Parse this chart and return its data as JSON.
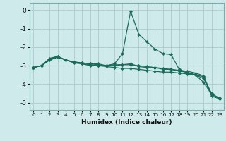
{
  "xlabel": "Humidex (Indice chaleur)",
  "bg_color": "#ceeaea",
  "grid_color": "#b0d0d0",
  "line_color": "#1a6b5a",
  "xlim": [
    -0.5,
    23.5
  ],
  "ylim": [
    -5.4,
    0.4
  ],
  "xticks": [
    0,
    1,
    2,
    3,
    4,
    5,
    6,
    7,
    8,
    9,
    10,
    11,
    12,
    13,
    14,
    15,
    16,
    17,
    18,
    19,
    20,
    21,
    22,
    23
  ],
  "yticks": [
    0,
    -1,
    -2,
    -3,
    -4,
    -5
  ],
  "line1_x": [
    0,
    1,
    2,
    3,
    4,
    5,
    6,
    7,
    8,
    9,
    10,
    11,
    12,
    13,
    14,
    15,
    16,
    17,
    18,
    19,
    20,
    21,
    22,
    23
  ],
  "line1_y": [
    -3.1,
    -3.0,
    -2.6,
    -2.5,
    -2.7,
    -2.8,
    -2.9,
    -3.0,
    -3.0,
    -3.0,
    -2.9,
    -2.35,
    -0.05,
    -1.3,
    -1.7,
    -2.1,
    -2.35,
    -2.4,
    -3.2,
    -3.4,
    -3.5,
    -3.9,
    -4.55,
    -4.75
  ],
  "line2_x": [
    0,
    1,
    2,
    3,
    4,
    5,
    6,
    7,
    8,
    9,
    10,
    11,
    12,
    13,
    14,
    15,
    16,
    17,
    18,
    19,
    20,
    21,
    22,
    23
  ],
  "line2_y": [
    -3.1,
    -3.0,
    -2.7,
    -2.55,
    -2.7,
    -2.85,
    -2.9,
    -2.95,
    -3.0,
    -3.05,
    -3.1,
    -3.15,
    -3.15,
    -3.2,
    -3.25,
    -3.3,
    -3.35,
    -3.35,
    -3.4,
    -3.45,
    -3.5,
    -3.6,
    -4.65,
    -4.8
  ],
  "line3_x": [
    0,
    1,
    2,
    3,
    4,
    5,
    6,
    7,
    8,
    9,
    10,
    11,
    12,
    13,
    14,
    15,
    16,
    17,
    18,
    19,
    20,
    21,
    22,
    23
  ],
  "line3_y": [
    -3.1,
    -3.0,
    -2.65,
    -2.5,
    -2.7,
    -2.8,
    -2.85,
    -2.9,
    -2.95,
    -3.0,
    -3.0,
    -2.95,
    -2.95,
    -3.0,
    -3.05,
    -3.1,
    -3.15,
    -3.2,
    -3.25,
    -3.3,
    -3.4,
    -3.55,
    -4.55,
    -4.8
  ],
  "line4_x": [
    0,
    1,
    2,
    3,
    4,
    5,
    6,
    7,
    8,
    9,
    10,
    11,
    12,
    13,
    14,
    15,
    16,
    17,
    18,
    19,
    20,
    21,
    22,
    23
  ],
  "line4_y": [
    -3.1,
    -3.0,
    -2.65,
    -2.5,
    -2.7,
    -2.8,
    -2.85,
    -2.9,
    -2.9,
    -3.0,
    -2.95,
    -2.95,
    -2.9,
    -3.05,
    -3.1,
    -3.1,
    -3.2,
    -3.2,
    -3.3,
    -3.35,
    -3.5,
    -3.7,
    -4.5,
    -4.8
  ]
}
